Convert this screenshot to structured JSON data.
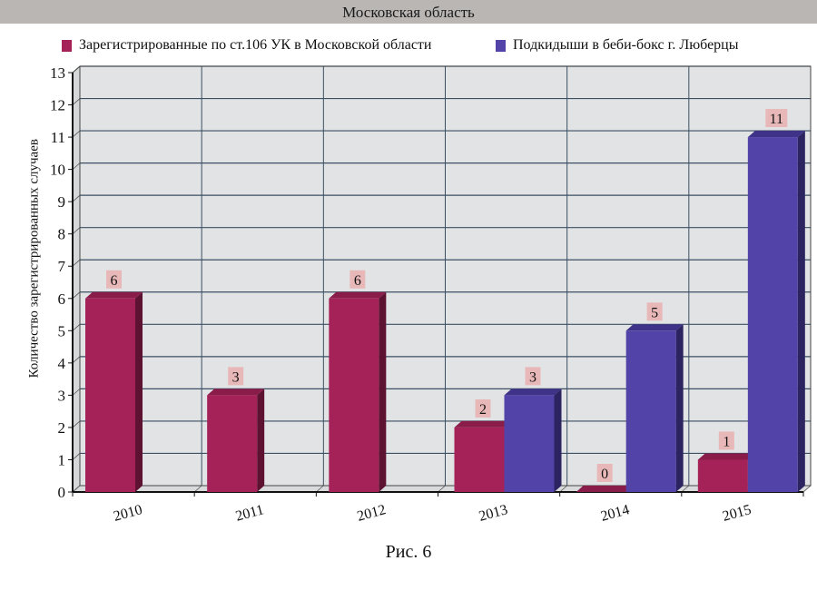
{
  "header": {
    "title": "Московская область"
  },
  "legend": [
    {
      "label": "Зарегистрированные по ст.106 УК в Московской области",
      "color": "#a52259"
    },
    {
      "label": "Подкидыши в беби-бокс г. Люберцы",
      "color": "#5243a8"
    }
  ],
  "caption": "Рис. 6",
  "colors": {
    "series1_front": "#a52259",
    "series1_top": "#8a1c4a",
    "series1_side": "#5e1232",
    "series2_front": "#5243a8",
    "series2_top": "#3f3389",
    "series2_side": "#2b2461",
    "wall": "#e2e3e5",
    "grid": "#3b4f63",
    "label_bg": "#e8b8b8"
  },
  "chart_data": {
    "type": "bar",
    "title": "Московская область",
    "xlabel": "",
    "ylabel": "Количество зарегистрированных случаев",
    "categories": [
      "2010",
      "2011",
      "2012",
      "2013",
      "2014",
      "2015"
    ],
    "series": [
      {
        "name": "Зарегистрированные по ст.106 УК в Московской области",
        "values": [
          6,
          3,
          6,
          2,
          0,
          1
        ]
      },
      {
        "name": "Подкидыши в беби-бокс г. Люберцы",
        "values": [
          null,
          null,
          null,
          3,
          5,
          11
        ]
      }
    ],
    "ylim": [
      0,
      13
    ],
    "yticks": [
      0,
      1,
      2,
      3,
      4,
      5,
      6,
      7,
      8,
      9,
      10,
      11,
      12,
      13
    ],
    "grid": true,
    "legend_position": "top",
    "data_labels": true,
    "style": "3d-column"
  }
}
